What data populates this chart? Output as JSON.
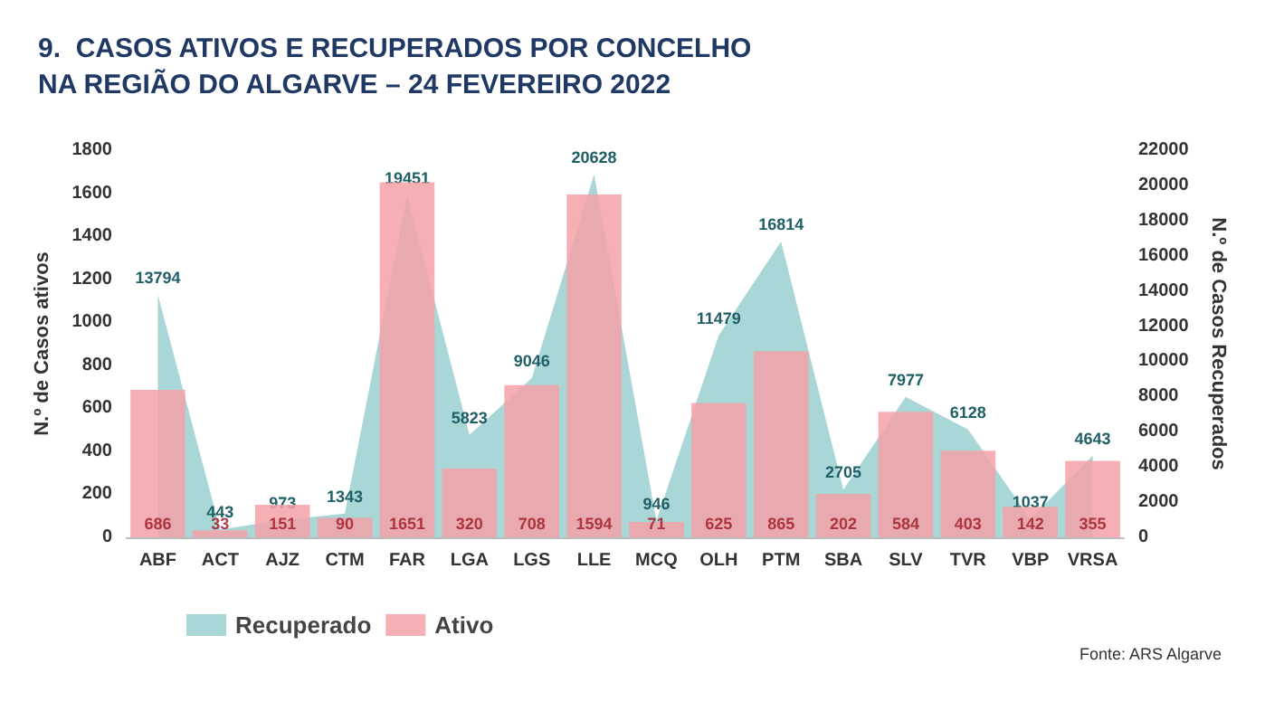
{
  "chart_data": {
    "type": "bar",
    "title": "9.  CASOS ATIVOS E RECUPERADOS POR CONCELHO NA REGIÃO DO ALGARVE – 24 FEVEREIRO 2022",
    "ylabel": "N.º de Casos ativos",
    "y2label": "N.º de Casos Recuperados",
    "annotations": [
      "Fonte: ARS Algarve"
    ],
    "categories": [
      "ABF",
      "ACT",
      "AJZ",
      "CTM",
      "FAR",
      "LGA",
      "LGS",
      "LLE",
      "MCQ",
      "OLH",
      "PTM",
      "SBA",
      "SLV",
      "TVR",
      "VBP",
      "VRSA"
    ],
    "series": [
      {
        "name": "Recuperado",
        "type": "area",
        "axis": "y2",
        "color": "#a9d6d6",
        "values": [
          13794,
          443,
          973,
          1343,
          19451,
          5823,
          9046,
          20628,
          946,
          11479,
          16814,
          2705,
          7977,
          6128,
          1037,
          4643
        ]
      },
      {
        "name": "Ativo",
        "color": "#f4a2a8",
        "values": [
          686,
          33,
          151,
          90,
          1651,
          320,
          708,
          1594,
          71,
          625,
          865,
          202,
          584,
          403,
          142,
          355
        ]
      }
    ],
    "ylim": [
      0,
      1800
    ],
    "yticks": [
      0,
      200,
      400,
      600,
      800,
      1000,
      1200,
      1400,
      1600,
      1800
    ],
    "y2lim": [
      0,
      22000
    ],
    "y2ticks": [
      0,
      2000,
      4000,
      6000,
      8000,
      10000,
      12000,
      14000,
      16000,
      18000,
      20000,
      22000
    ],
    "data_labels": true,
    "legend": "bottom left",
    "grid": false
  }
}
